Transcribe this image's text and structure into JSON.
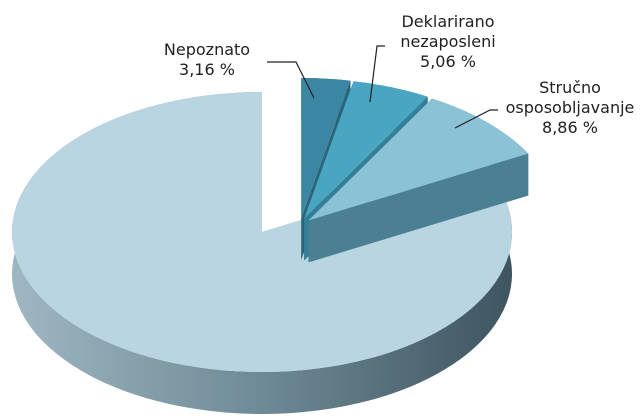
{
  "chart_data": {
    "type": "pie3d",
    "categories": [
      "Nepoznato",
      "Deklarirano\nnezaposleni",
      "Stručno\nosposobljavanje",
      null
    ],
    "values": [
      3.16,
      5.06,
      8.86,
      82.92
    ],
    "value_labels": [
      "3,16 %",
      "5,06 %",
      "8,86 %",
      null
    ],
    "colors": [
      "#3a86a3",
      "#4aa5c3",
      "#8cc2d6",
      "#b9d5e1"
    ],
    "side_colors": [
      "#2b6579",
      "#337f98",
      "#4b7f93",
      "#6f8f9c"
    ],
    "exploded": [
      true,
      true,
      true,
      false
    ]
  }
}
